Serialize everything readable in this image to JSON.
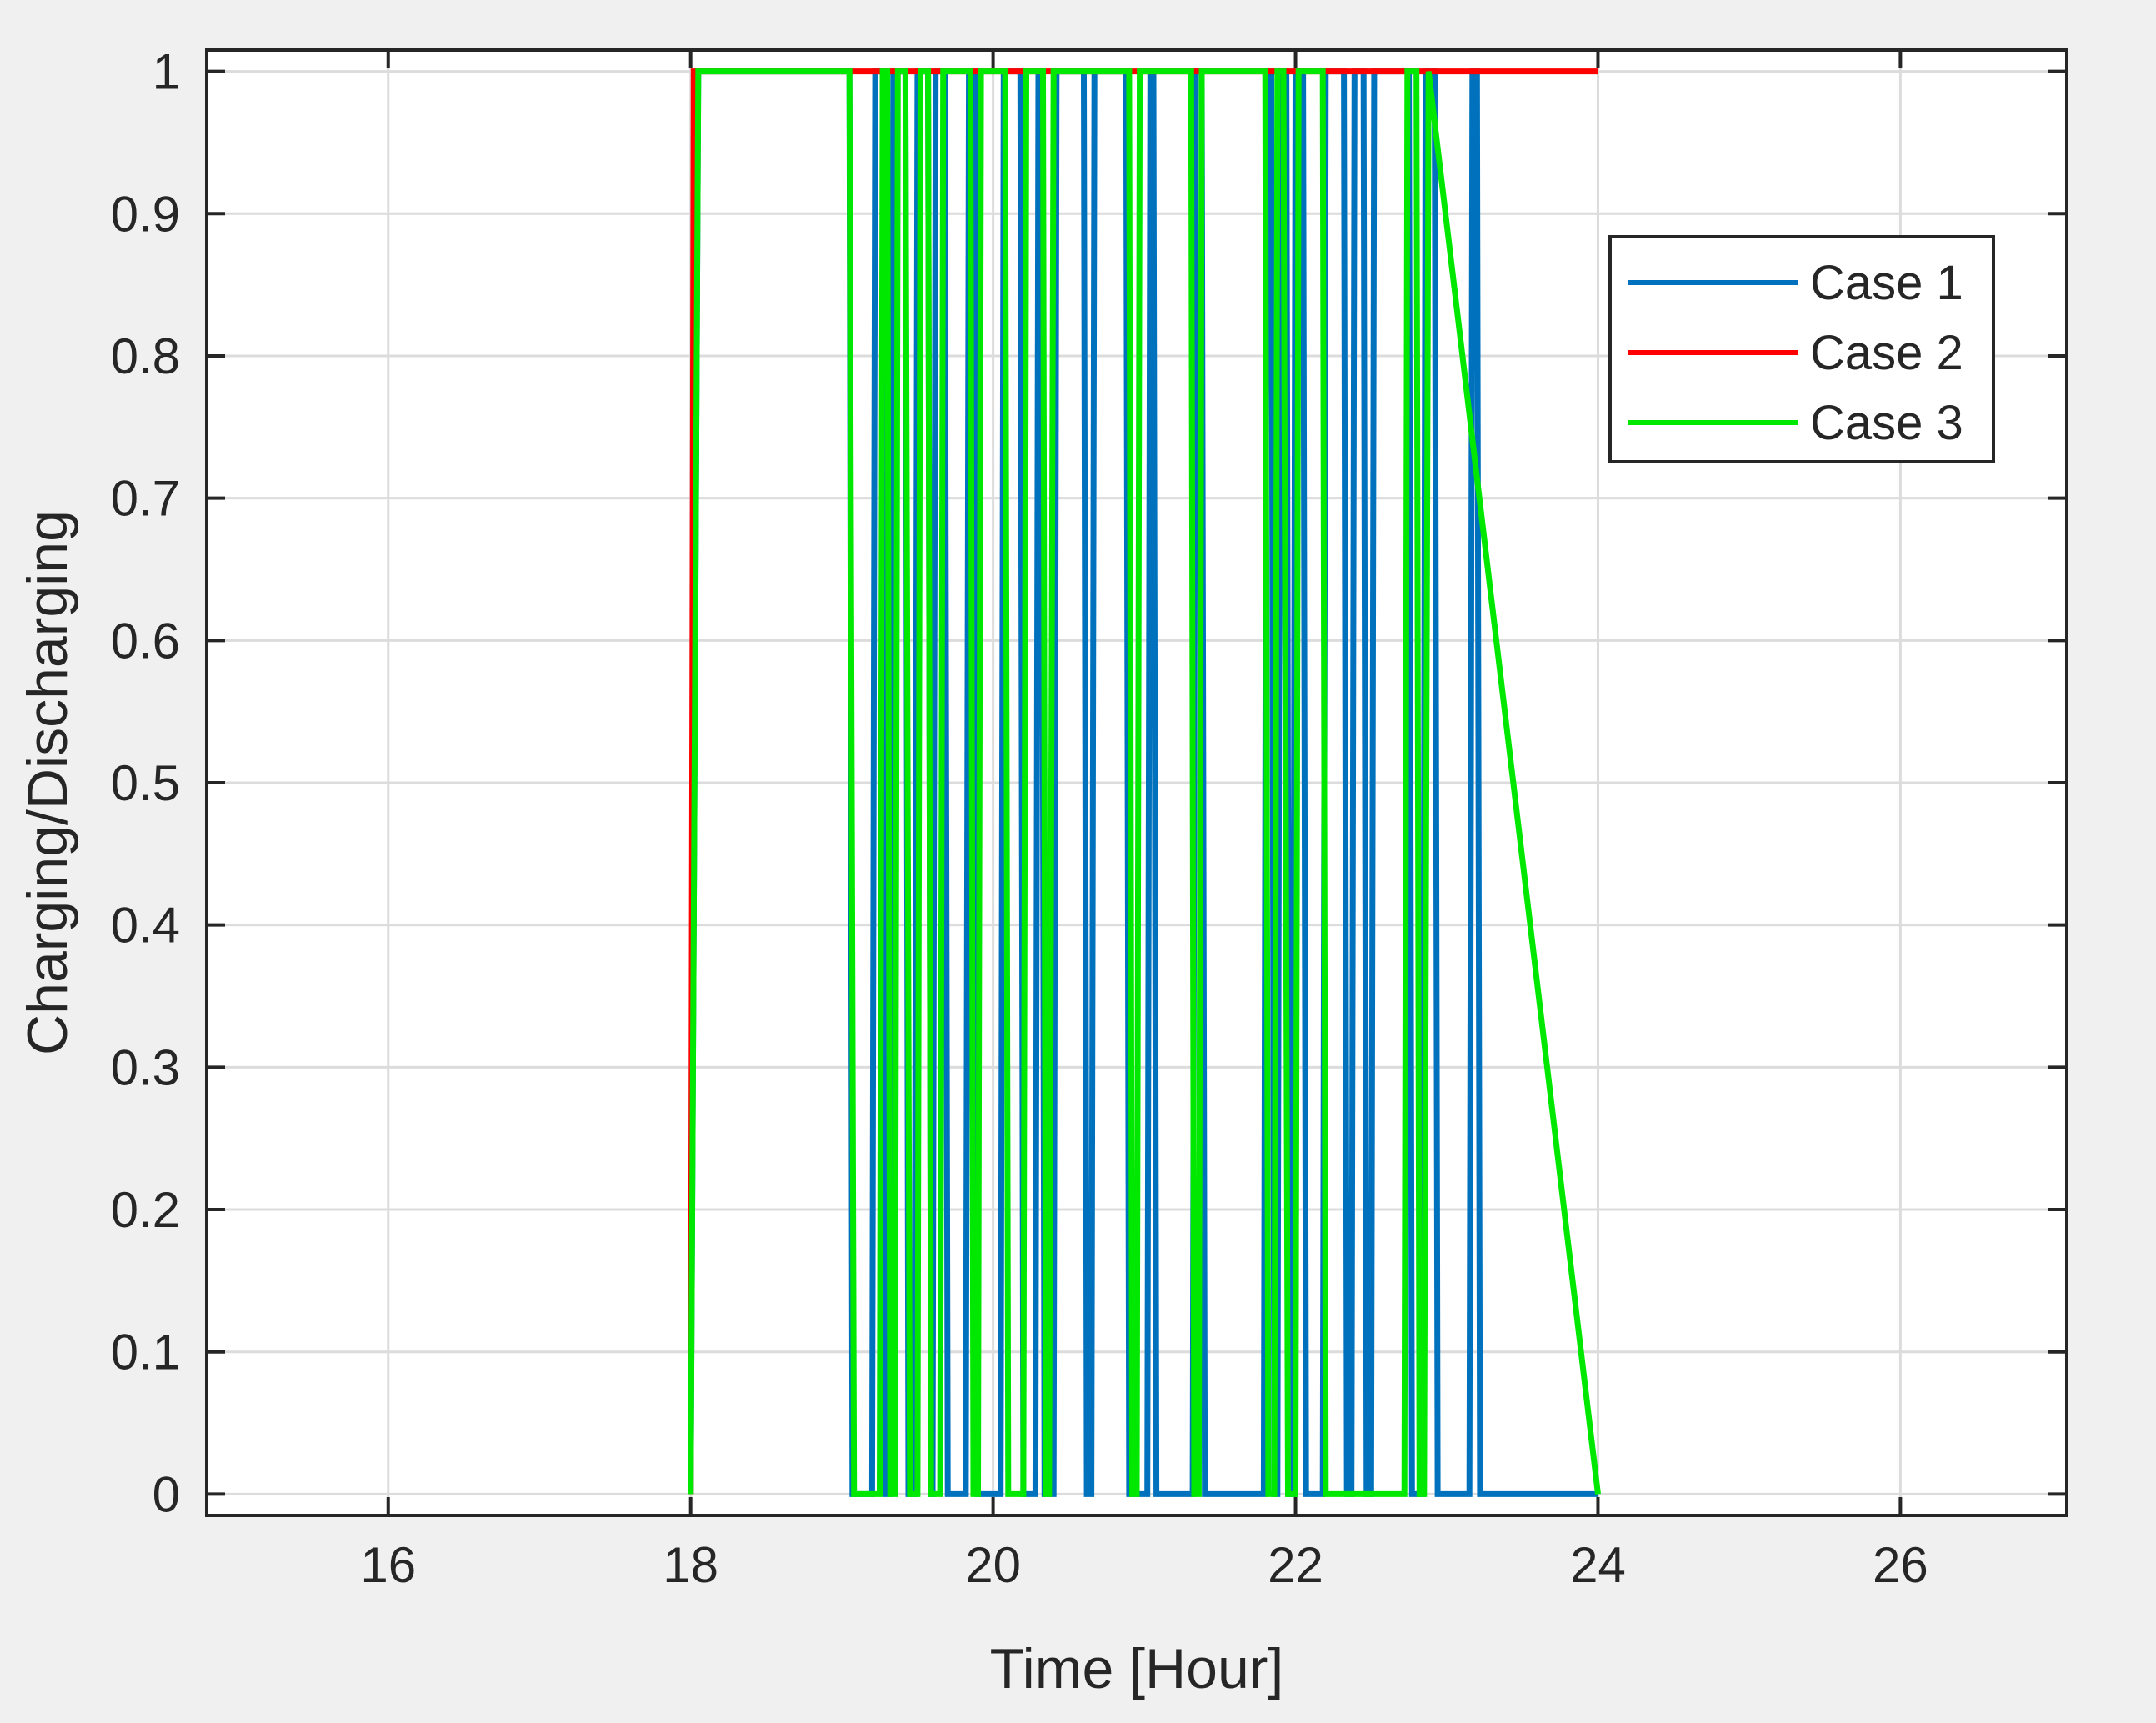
{
  "chart_data": {
    "type": "line",
    "xlabel": "Time [Hour]",
    "ylabel": "Charging/Discharging",
    "xlim": [
      14.8,
      27.1
    ],
    "ylim": [
      -0.015,
      1.015
    ],
    "xticks": [
      16,
      18,
      20,
      22,
      24,
      26
    ],
    "xtick_labels": [
      "16",
      "18",
      "20",
      "22",
      "24",
      "26"
    ],
    "yticks": [
      0,
      0.1,
      0.2,
      0.3,
      0.4,
      0.5,
      0.6,
      0.7,
      0.8,
      0.9,
      1
    ],
    "ytick_labels": [
      "0",
      "0.1",
      "0.2",
      "0.3",
      "0.4",
      "0.5",
      "0.6",
      "0.7",
      "0.8",
      "0.9",
      "1"
    ],
    "grid": true,
    "legend_position": "top-right",
    "colors": {
      "figure_background": "#f0f0f0",
      "axes_background": "#ffffff",
      "grid": "#dcdcdc",
      "axis": "#262626"
    },
    "series": [
      {
        "name": "Case 1",
        "color": "#0072bd",
        "x": [
          18.0,
          18.05,
          19.05,
          19.07,
          19.2,
          19.22,
          19.27,
          19.29,
          19.32,
          19.34,
          19.42,
          19.44,
          19.48,
          19.5,
          19.57,
          19.59,
          19.6,
          19.62,
          19.68,
          19.7,
          19.82,
          19.84,
          19.88,
          19.9,
          20.05,
          20.07,
          20.18,
          20.2,
          20.28,
          20.3,
          20.32,
          20.34,
          20.4,
          20.42,
          20.6,
          20.62,
          20.65,
          20.67,
          20.88,
          20.9,
          21.02,
          21.04,
          21.06,
          21.08,
          21.32,
          21.34,
          21.38,
          21.4,
          21.79,
          21.81,
          21.84,
          21.86,
          21.88,
          21.9,
          21.94,
          21.96,
          21.98,
          22.0,
          22.05,
          22.07,
          22.18,
          22.2,
          22.32,
          22.34,
          22.37,
          22.39,
          22.45,
          22.47,
          22.5,
          22.52,
          22.75,
          22.77,
          22.84,
          22.86,
          22.92,
          22.94,
          23.15,
          23.17,
          23.2,
          23.22,
          24.0
        ],
        "y": [
          0,
          1,
          1,
          0,
          0,
          1,
          1,
          0,
          0,
          1,
          1,
          0,
          0,
          1,
          1,
          0,
          0,
          1,
          1,
          0,
          0,
          1,
          1,
          0,
          0,
          1,
          1,
          0,
          0,
          1,
          1,
          0,
          0,
          1,
          1,
          0,
          0,
          1,
          1,
          0,
          0,
          1,
          1,
          0,
          0,
          1,
          1,
          0,
          0,
          1,
          1,
          0,
          0,
          1,
          1,
          0,
          0,
          1,
          1,
          0,
          0,
          1,
          1,
          0,
          0,
          1,
          1,
          0,
          0,
          1,
          1,
          0,
          0,
          1,
          1,
          0,
          0,
          1,
          1,
          0,
          0
        ]
      },
      {
        "name": "Case 2",
        "color": "#ff0000",
        "x": [
          18.0,
          18.02,
          24.0
        ],
        "y": [
          0,
          1,
          1
        ]
      },
      {
        "name": "Case 3",
        "color": "#00e800",
        "x": [
          18.0,
          18.05,
          19.05,
          19.08,
          19.25,
          19.27,
          19.3,
          19.32,
          19.35,
          19.37,
          19.42,
          19.45,
          19.5,
          19.52,
          19.57,
          19.59,
          19.65,
          19.67,
          19.85,
          19.87,
          19.9,
          19.92,
          20.08,
          20.1,
          20.2,
          20.22,
          20.33,
          20.35,
          20.37,
          20.4,
          20.9,
          20.92,
          20.95,
          20.97,
          21.31,
          21.33,
          21.36,
          21.38,
          21.8,
          21.82,
          21.86,
          21.88,
          21.92,
          21.95,
          22.0,
          22.02,
          22.18,
          22.2,
          22.72,
          22.74,
          22.8,
          22.82,
          22.85,
          22.88,
          24.0
        ],
        "y": [
          0,
          1,
          1,
          0,
          0,
          1,
          1,
          0,
          0,
          1,
          1,
          0,
          0,
          1,
          1,
          0,
          0,
          1,
          1,
          0,
          0,
          1,
          1,
          0,
          0,
          1,
          1,
          0,
          0,
          1,
          1,
          0,
          0,
          1,
          1,
          0,
          0,
          1,
          1,
          0,
          0,
          1,
          1,
          0,
          0,
          1,
          1,
          0,
          0,
          1,
          1,
          0,
          0,
          1,
          0
        ]
      }
    ]
  }
}
